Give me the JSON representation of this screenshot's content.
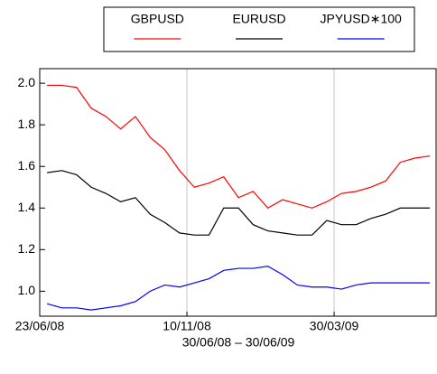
{
  "chart_data": {
    "type": "line",
    "x_label": "30/06/08 – 30/06/09",
    "x": [
      "2008-06-30",
      "2008-07-14",
      "2008-07-28",
      "2008-08-11",
      "2008-08-25",
      "2008-09-08",
      "2008-09-22",
      "2008-10-06",
      "2008-10-20",
      "2008-11-03",
      "2008-11-17",
      "2008-12-01",
      "2008-12-15",
      "2008-12-29",
      "2009-01-12",
      "2009-01-26",
      "2009-02-09",
      "2009-02-23",
      "2009-03-09",
      "2009-03-23",
      "2009-04-06",
      "2009-04-20",
      "2009-05-04",
      "2009-05-18",
      "2009-06-01",
      "2009-06-15",
      "2009-06-29"
    ],
    "series": [
      {
        "name": "GBPUSD",
        "color": "#ff0000",
        "values": [
          1.99,
          1.99,
          1.98,
          1.88,
          1.84,
          1.78,
          1.84,
          1.74,
          1.68,
          1.58,
          1.5,
          1.52,
          1.55,
          1.45,
          1.48,
          1.4,
          1.44,
          1.42,
          1.4,
          1.43,
          1.47,
          1.48,
          1.5,
          1.53,
          1.62,
          1.64,
          1.65
        ]
      },
      {
        "name": "EURUSD",
        "color": "#000000",
        "values": [
          1.57,
          1.58,
          1.56,
          1.5,
          1.47,
          1.43,
          1.45,
          1.37,
          1.33,
          1.28,
          1.27,
          1.27,
          1.4,
          1.4,
          1.32,
          1.29,
          1.28,
          1.27,
          1.27,
          1.34,
          1.32,
          1.32,
          1.35,
          1.37,
          1.4,
          1.4,
          1.4
        ]
      },
      {
        "name": "JPYUSD∗100",
        "color": "#0000ff",
        "values": [
          0.94,
          0.92,
          0.92,
          0.91,
          0.92,
          0.93,
          0.95,
          1.0,
          1.03,
          1.02,
          1.04,
          1.06,
          1.1,
          1.11,
          1.11,
          1.12,
          1.08,
          1.03,
          1.02,
          1.02,
          1.01,
          1.03,
          1.04,
          1.04,
          1.04,
          1.04,
          1.04
        ]
      }
    ],
    "xlim": [
      "2008-06-23",
      "2009-07-05"
    ],
    "xticks": [
      {
        "value": "2008-06-23",
        "label": "23/06/08"
      },
      {
        "value": "2008-11-10",
        "label": "10/11/08"
      },
      {
        "value": "2009-03-30",
        "label": "30/03/09"
      }
    ],
    "ylim": [
      0.88,
      2.07
    ],
    "yticks": [
      {
        "value": 1.0,
        "label": "1.0"
      },
      {
        "value": 1.2,
        "label": "1.2"
      },
      {
        "value": 1.4,
        "label": "1.4"
      },
      {
        "value": 1.6,
        "label": "1.6"
      },
      {
        "value": 1.8,
        "label": "1.8"
      },
      {
        "value": 2.0,
        "label": "2.0"
      }
    ],
    "grid": "x",
    "legend": "top"
  }
}
